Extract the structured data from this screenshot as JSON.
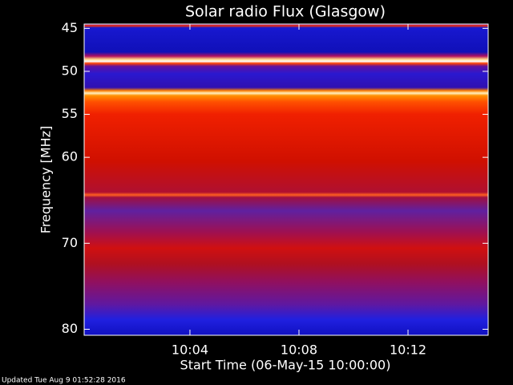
{
  "chart_data": {
    "type": "spectrogram",
    "title": "Solar radio Flux (Glasgow)",
    "y_label": "Frequency [MHz]",
    "x_label": "Start Time (06-May-15 10:00:00)",
    "footer": "Updated Tue Aug  9 01:52:28 2016",
    "xlim": [
      0.12,
      14.94
    ],
    "xticks": [
      {
        "value": 4,
        "label": "10:04"
      },
      {
        "value": 8,
        "label": "10:08"
      },
      {
        "value": 12,
        "label": "10:12"
      }
    ],
    "ylim": [
      80.7,
      44.5
    ],
    "yticks": [
      45,
      50,
      55,
      60,
      70,
      80
    ]
  }
}
